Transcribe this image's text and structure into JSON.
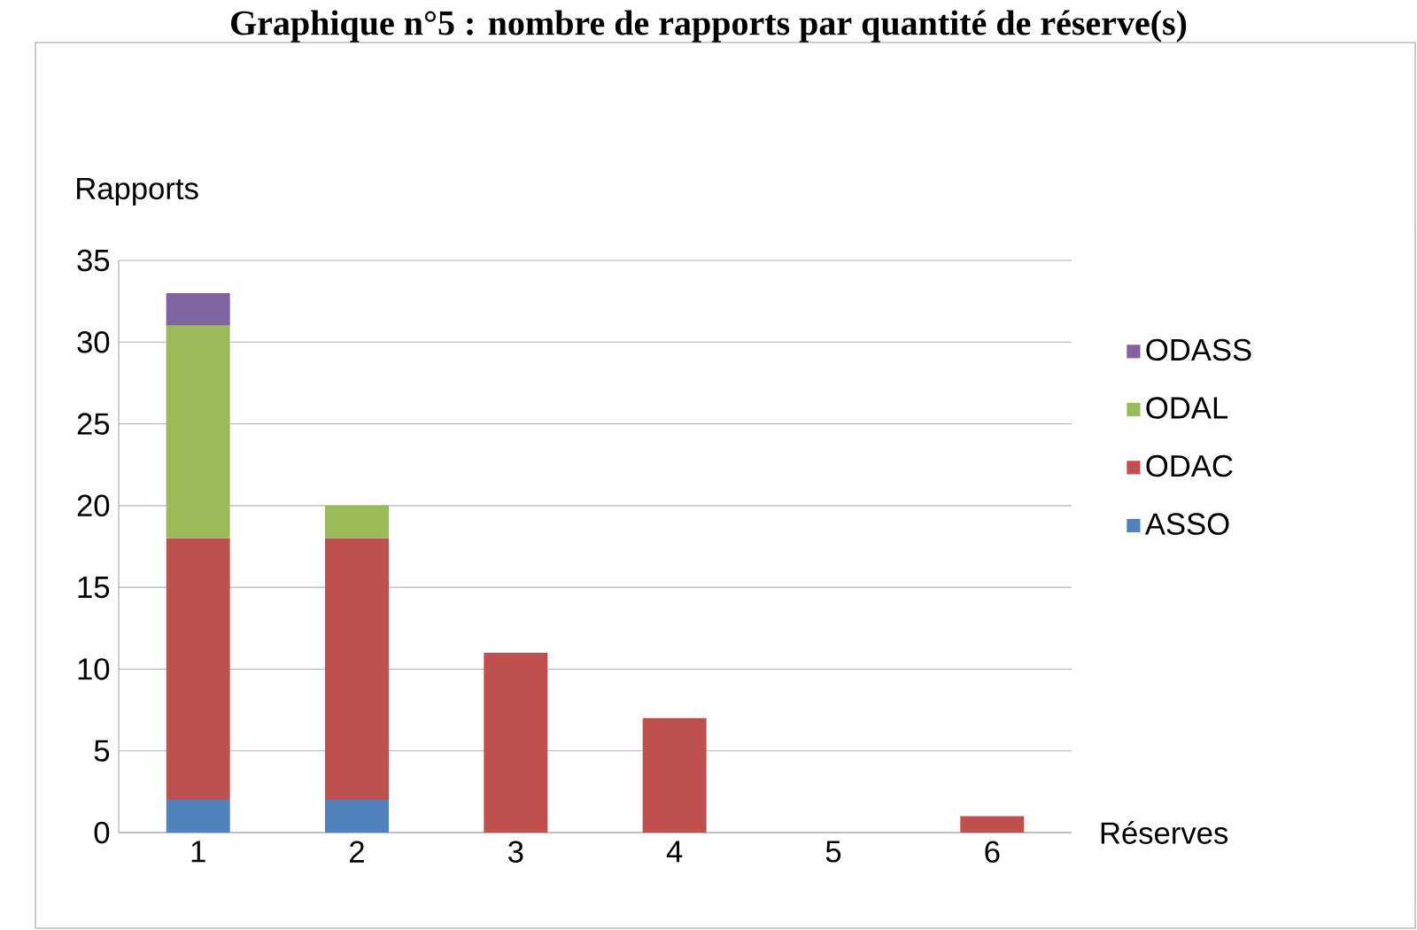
{
  "chart_data": {
    "type": "bar",
    "title": "Graphique n°5 : nombre de rapports par quantité de réserve(s)",
    "xlabel": "Réserves",
    "ylabel": "Rapports",
    "categories": [
      "1",
      "2",
      "3",
      "4",
      "5",
      "6"
    ],
    "stacked": true,
    "series": [
      {
        "name": "ASSO",
        "color": "#4f81bd",
        "values": [
          2,
          2,
          0,
          0,
          0,
          0
        ]
      },
      {
        "name": "ODAC",
        "color": "#c0504d",
        "values": [
          16,
          16,
          11,
          7,
          0,
          1
        ]
      },
      {
        "name": "ODAL",
        "color": "#9bbb59",
        "values": [
          13,
          2,
          0,
          0,
          0,
          0
        ]
      },
      {
        "name": "ODASS",
        "color": "#8064a2",
        "values": [
          2,
          0,
          0,
          0,
          0,
          0
        ]
      }
    ],
    "ylim": [
      0,
      35
    ],
    "yticks": [
      0,
      5,
      10,
      15,
      20,
      25,
      30,
      35
    ],
    "grid": "y",
    "legend": "right"
  }
}
